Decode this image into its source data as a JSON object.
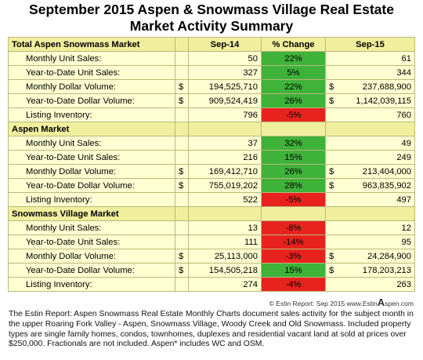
{
  "title_line1": "September 2015 Aspen & Snowmass Village Real Estate",
  "title_line2": "Market Activity Summary",
  "columns": {
    "prior": "Sep-14",
    "change": "% Change",
    "current": "Sep-15"
  },
  "sections": [
    {
      "name": "Total Aspen Snowmass Market",
      "rows": [
        {
          "label": "Monthly Unit Sales:",
          "prior_cur": "",
          "prior": "50",
          "change": "22%",
          "trend": "green",
          "cur_cur": "",
          "current": "61"
        },
        {
          "label": "Year-to-Date Unit Sales:",
          "prior_cur": "",
          "prior": "327",
          "change": "5%",
          "trend": "green",
          "cur_cur": "",
          "current": "344"
        },
        {
          "label": "Monthly Dollar Volume:",
          "prior_cur": "$",
          "prior": "194,525,710",
          "change": "22%",
          "trend": "green",
          "cur_cur": "$",
          "current": "237,688,900"
        },
        {
          "label": "Year-to-Date Dollar Volume:",
          "prior_cur": "$",
          "prior": "909,524,419",
          "change": "26%",
          "trend": "green",
          "cur_cur": "$",
          "current": "1,142,039,115"
        },
        {
          "label": "Listing Inventory:",
          "prior_cur": "",
          "prior": "796",
          "change": "-5%",
          "trend": "red",
          "cur_cur": "",
          "current": "760"
        }
      ]
    },
    {
      "name": "Aspen Market",
      "rows": [
        {
          "label": "Monthly Unit Sales:",
          "prior_cur": "",
          "prior": "37",
          "change": "32%",
          "trend": "green",
          "cur_cur": "",
          "current": "49"
        },
        {
          "label": "Year-to-Date Unit Sales:",
          "prior_cur": "",
          "prior": "216",
          "change": "15%",
          "trend": "green",
          "cur_cur": "",
          "current": "249"
        },
        {
          "label": "Monthly Dollar Volume:",
          "prior_cur": "$",
          "prior": "169,412,710",
          "change": "26%",
          "trend": "green",
          "cur_cur": "$",
          "current": "213,404,000"
        },
        {
          "label": "Year-to-Date Dollar Volume:",
          "prior_cur": "$",
          "prior": "755,019,202",
          "change": "28%",
          "trend": "green",
          "cur_cur": "$",
          "current": "963,835,902"
        },
        {
          "label": "Listing Inventory:",
          "prior_cur": "",
          "prior": "522",
          "change": "-5%",
          "trend": "red",
          "cur_cur": "",
          "current": "497"
        }
      ]
    },
    {
      "name": "Snowmass Village Market",
      "rows": [
        {
          "label": "Monthly Unit Sales:",
          "prior_cur": "",
          "prior": "13",
          "change": "-8%",
          "trend": "red",
          "cur_cur": "",
          "current": "12"
        },
        {
          "label": "Year-to-Date Unit Sales:",
          "prior_cur": "",
          "prior": "111",
          "change": "-14%",
          "trend": "red",
          "cur_cur": "",
          "current": "95"
        },
        {
          "label": "Monthly Dollar Volume:",
          "prior_cur": "$",
          "prior": "25,113,000",
          "change": "-3%",
          "trend": "red",
          "cur_cur": "$",
          "current": "24,284,900"
        },
        {
          "label": "Year-to-Date Dollar Volume:",
          "prior_cur": "$",
          "prior": "154,505,218",
          "change": "15%",
          "trend": "green",
          "cur_cur": "$",
          "current": "178,203,213"
        },
        {
          "label": "Listing Inventory:",
          "prior_cur": "",
          "prior": "274",
          "change": "-4%",
          "trend": "red",
          "cur_cur": "",
          "current": "263"
        }
      ]
    }
  ],
  "credit": {
    "prefix": "© Estin Report: Sep 2015 www.Estin",
    "big_letter": "A",
    "suffix": "spen.com"
  },
  "footnote": "The Estin Report: Aspen Snowmass Real Estate Monthly Charts document sales activity for the subject month in the upper Roaring Fork Valley - Aspen, Snowmass Village, Woody Creek and Old Snowmass. Included property types are single family homes, condos, townhomes, duplexes and residential vacant land at sold at prices over $250,000. Fractionals are not included. Aspen* includes WC and OSM.",
  "colors": {
    "header_bg": "#f0ef9e",
    "row_bg": "#ffffd2",
    "up": "#3fb23a",
    "down": "#e8231f"
  }
}
